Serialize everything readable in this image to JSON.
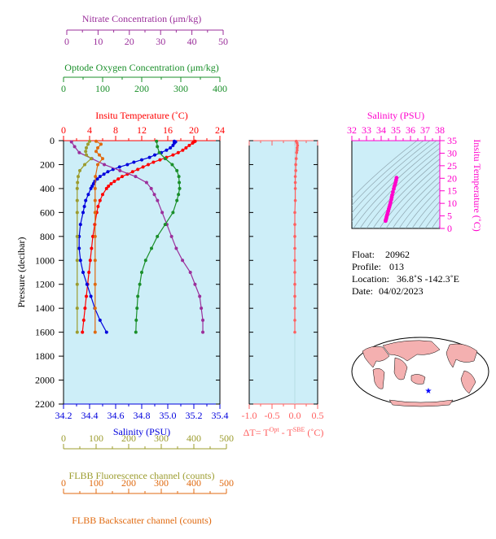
{
  "colors": {
    "nitrate": "#9b2f9b",
    "oxygen": "#1a8f2a",
    "temperature": "#ff0000",
    "salinity": "#0000dd",
    "fluorescence": "#9c9c2e",
    "backscatter": "#e06a10",
    "delta": "#ff6060",
    "ts": "#ff00cc",
    "panel_bg": "#cdeef8",
    "axis_black": "#000000"
  },
  "axes": {
    "nitrate": {
      "label": "Nitrate Concentration (μm/kg)",
      "ticks": [
        "0",
        "10",
        "20",
        "30",
        "40",
        "50"
      ]
    },
    "oxygen": {
      "label": "Optode Oxygen Concentration (μm/kg)",
      "ticks": [
        "0",
        "100",
        "200",
        "300",
        "400"
      ]
    },
    "temperature": {
      "label": "Insitu Temperature (˚C)",
      "ticks": [
        "0",
        "4",
        "8",
        "12",
        "16",
        "20",
        "24"
      ]
    },
    "salinity": {
      "label": "Salinity (PSU)",
      "ticks": [
        "34.2",
        "34.4",
        "34.6",
        "34.8",
        "35.0",
        "35.2",
        "35.4"
      ]
    },
    "pressure": {
      "label": "Pressure (decibar)",
      "ticks": [
        "0",
        "200",
        "400",
        "600",
        "800",
        "1000",
        "1200",
        "1400",
        "1600",
        "1800",
        "2000",
        "2200"
      ]
    },
    "fluorescence": {
      "label": "FLBB Fluorescence channel (counts)",
      "ticks": [
        "0",
        "100",
        "200",
        "300",
        "400",
        "500"
      ]
    },
    "backscatter": {
      "label": "FLBB Backscatter channel (counts)",
      "ticks": [
        "0",
        "100",
        "200",
        "300",
        "400",
        "500"
      ]
    },
    "delta": {
      "label_main": "ΔT= T",
      "label_sup1": "Opt",
      "label_mid": " - T",
      "label_sup2": "SBE",
      "label_end": " (˚C)",
      "ticks": [
        "-1.0",
        "-0.5",
        "0.0",
        "0.5"
      ]
    },
    "ts_salinity": {
      "label": "Salinity (PSU)",
      "ticks": [
        "32",
        "33",
        "34",
        "35",
        "36",
        "37",
        "38"
      ]
    },
    "ts_temperature": {
      "label": "Insitu Temperature (˚C)",
      "ticks": [
        "0",
        "5",
        "10",
        "15",
        "20",
        "25",
        "30",
        "35"
      ]
    }
  },
  "info": {
    "float_label": "Float:",
    "float_value": "20962",
    "profile_label": "Profile:",
    "profile_value": "013",
    "location_label": "Location:",
    "location_value": "36.8˚S  -142.3˚E",
    "date_label": "Date:",
    "date_value": "04/02/2023"
  },
  "chart_data": [
    {
      "type": "line",
      "ylabel": "Pressure (decibar)",
      "ylim": [
        2200,
        0
      ],
      "series": [
        {
          "name": "Insitu Temperature (˚C)",
          "xlim": [
            0,
            24
          ],
          "pressure": [
            5,
            10,
            20,
            40,
            60,
            80,
            100,
            120,
            140,
            160,
            180,
            200,
            220,
            240,
            260,
            280,
            300,
            320,
            340,
            360,
            380,
            400,
            450,
            500,
            550,
            600,
            700,
            800,
            900,
            1000,
            1100,
            1200,
            1300,
            1400,
            1500,
            1600
          ],
          "values": [
            20.2,
            20.0,
            19.8,
            19.3,
            18.8,
            18.3,
            17.6,
            16.8,
            15.8,
            14.8,
            13.8,
            13.0,
            12.2,
            11.4,
            10.6,
            9.8,
            9.0,
            8.4,
            7.8,
            7.3,
            6.9,
            6.6,
            6.0,
            5.6,
            5.3,
            5.1,
            4.8,
            4.5,
            4.3,
            4.1,
            3.9,
            3.7,
            3.5,
            3.3,
            3.1,
            2.9
          ]
        },
        {
          "name": "Salinity (PSU)",
          "xlim": [
            34.2,
            35.4
          ],
          "pressure": [
            5,
            10,
            20,
            40,
            60,
            80,
            100,
            120,
            140,
            160,
            180,
            200,
            220,
            240,
            260,
            280,
            300,
            320,
            340,
            360,
            380,
            400,
            450,
            500,
            550,
            600,
            700,
            800,
            900,
            1000,
            1100,
            1200,
            1300,
            1400,
            1500,
            1600
          ],
          "values": [
            35.05,
            35.06,
            35.05,
            35.04,
            35.02,
            34.99,
            34.95,
            34.9,
            34.86,
            34.8,
            34.74,
            34.69,
            34.63,
            34.58,
            34.54,
            34.51,
            34.48,
            34.46,
            34.44,
            34.43,
            34.42,
            34.41,
            34.39,
            34.37,
            34.36,
            34.35,
            34.33,
            34.32,
            34.32,
            34.33,
            34.35,
            34.38,
            34.41,
            34.44,
            34.48,
            34.53
          ]
        },
        {
          "name": "Nitrate Concentration (μm/kg)",
          "xlim": [
            0,
            50
          ],
          "pressure": [
            10,
            50,
            100,
            150,
            200,
            250,
            300,
            350,
            400,
            450,
            500,
            600,
            700,
            800,
            900,
            1000,
            1100,
            1200,
            1300,
            1400,
            1500,
            1600
          ],
          "values": [
            1.5,
            2.5,
            4,
            8,
            12,
            17,
            22,
            25.5,
            27,
            28,
            29,
            30.5,
            32,
            33.5,
            35,
            37,
            39.5,
            41,
            42.5,
            43,
            43.5,
            43.5
          ]
        },
        {
          "name": "Optode Oxygen Concentration (μm/kg)",
          "xlim": [
            0,
            400
          ],
          "pressure": [
            5,
            50,
            100,
            150,
            200,
            250,
            300,
            350,
            400,
            450,
            500,
            600,
            700,
            800,
            900,
            1000,
            1100,
            1200,
            1300,
            1400,
            1500,
            1600
          ],
          "values": [
            238,
            240,
            245,
            260,
            278,
            290,
            295,
            296,
            297,
            294,
            290,
            280,
            260,
            240,
            225,
            210,
            200,
            195,
            190,
            188,
            186,
            185
          ]
        },
        {
          "name": "FLBB Fluorescence channel (counts)",
          "xlim": [
            0,
            500
          ],
          "pressure": [
            5,
            30,
            60,
            90,
            120,
            150,
            200,
            250,
            300,
            350,
            400,
            500,
            600,
            800,
            1000,
            1200,
            1400,
            1600
          ],
          "values": [
            80,
            75,
            70,
            68,
            70,
            85,
            65,
            50,
            45,
            43,
            42,
            42,
            42,
            42,
            42,
            42,
            42,
            42
          ]
        },
        {
          "name": "FLBB Backscatter channel (counts)",
          "xlim": [
            0,
            500
          ],
          "pressure": [
            5,
            30,
            60,
            90,
            120,
            150,
            200,
            300,
            400,
            500,
            600,
            800,
            1000,
            1200,
            1400,
            1600
          ],
          "values": [
            100,
            115,
            105,
            100,
            110,
            120,
            105,
            98,
            97,
            97,
            97,
            97,
            97,
            97,
            97,
            97
          ]
        }
      ]
    },
    {
      "type": "line",
      "xlim": [
        -1.0,
        0.5
      ],
      "ylim": [
        2200,
        0
      ],
      "series": [
        {
          "name": "delta",
          "pressure": [
            5,
            20,
            40,
            60,
            80,
            100,
            150,
            200,
            250,
            300,
            350,
            400,
            500,
            600,
            700,
            800,
            900,
            1000,
            1100,
            1200,
            1300,
            1400,
            1500,
            1600
          ],
          "values": [
            0.03,
            0.05,
            0.06,
            0.05,
            0.05,
            0.04,
            0.03,
            0.02,
            0.02,
            0.01,
            0.01,
            0.01,
            0.01,
            0.0,
            0.0,
            0.0,
            0.0,
            0.0,
            0.0,
            0.0,
            0.0,
            0.0,
            0.0,
            0.0
          ]
        }
      ]
    },
    {
      "type": "scatter",
      "xlabel": "Salinity (PSU)",
      "ylabel": "Insitu Temperature (˚C)",
      "xlim": [
        32,
        38
      ],
      "ylim": [
        0,
        35
      ],
      "series": [
        {
          "name": "ts",
          "salinity": [
            34.3,
            34.32,
            34.35,
            34.37,
            34.4,
            34.44,
            34.48,
            34.52,
            34.56,
            34.6,
            34.64,
            34.69,
            34.72,
            34.75,
            34.8,
            34.86,
            34.9,
            34.95,
            34.99,
            35.02,
            35.05
          ],
          "values": [
            3.0,
            3.5,
            4.0,
            4.6,
            5.3,
            6.0,
            6.9,
            7.8,
            8.6,
            9.4,
            10.4,
            11.5,
            12.4,
            13.3,
            14.5,
            15.8,
            16.8,
            17.6,
            18.5,
            19.3,
            20.2
          ]
        }
      ]
    }
  ]
}
